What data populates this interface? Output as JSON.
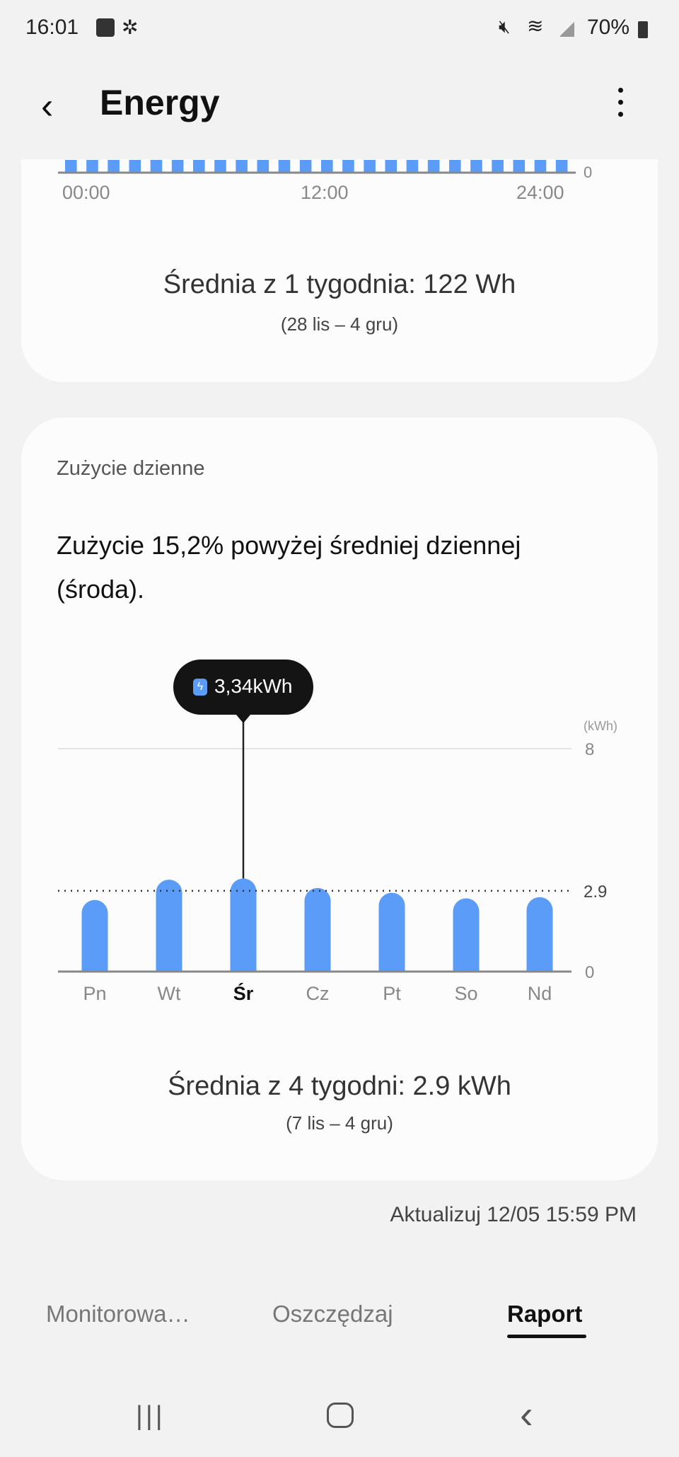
{
  "status_bar": {
    "time": "16:01",
    "battery": "70%",
    "icons": [
      "gallery-icon",
      "network-icon",
      "mute-icon",
      "wifi-icon",
      "signal-icon",
      "battery-icon"
    ]
  },
  "header": {
    "title": "Energy",
    "back_icon": "back-arrow-icon",
    "menu_icon": "more-vert-icon"
  },
  "hourly_card": {
    "x_ticks": [
      "00:00",
      "12:00",
      "24:00"
    ],
    "y_tick": "0",
    "average": "Średnia z 1 tygodnia: 122 Wh",
    "range": "(28 lis – 4 gru)"
  },
  "daily_card": {
    "title": "Zużycie dzienne",
    "headline": "Zużycie 15,2% powyżej średniej dziennej (środa).",
    "tooltip": "3,34kWh",
    "average": "Średnia z 4 tygodni: 2.9 kWh",
    "range": "(7 lis – 4 gru)"
  },
  "chart_data": [
    {
      "type": "bar",
      "x_ticks": [
        "00:00",
        "12:00",
        "24:00"
      ],
      "y_ticks": [
        "0"
      ],
      "values": [
        0,
        0,
        0,
        0,
        0,
        0,
        0,
        0,
        0,
        0,
        0,
        0,
        0,
        0,
        0,
        0,
        0,
        0,
        0,
        0,
        0,
        0,
        0,
        0
      ],
      "color": "#5a9cf8"
    },
    {
      "type": "bar",
      "categories": [
        "Pn",
        "Wt",
        "Śr",
        "Cz",
        "Pt",
        "So",
        "Nd"
      ],
      "values": [
        2.57,
        3.3,
        3.34,
        3.0,
        2.83,
        2.63,
        2.67
      ],
      "selected": "Śr",
      "unit": "(kWh)",
      "y_ticks": [
        "0",
        "2.9",
        "8"
      ],
      "ylim": [
        0,
        8
      ],
      "average_line": 2.9,
      "color": "#5a9cf8"
    }
  ],
  "updated": "Aktualizuj 12/05 15:59 PM",
  "tabs": [
    {
      "label": "Monitorowa…"
    },
    {
      "label": "Oszczędzaj"
    },
    {
      "label": "Raport",
      "active": true
    }
  ],
  "nav_bar": {
    "icons": [
      "recents-icon",
      "home-icon",
      "back-icon"
    ]
  }
}
